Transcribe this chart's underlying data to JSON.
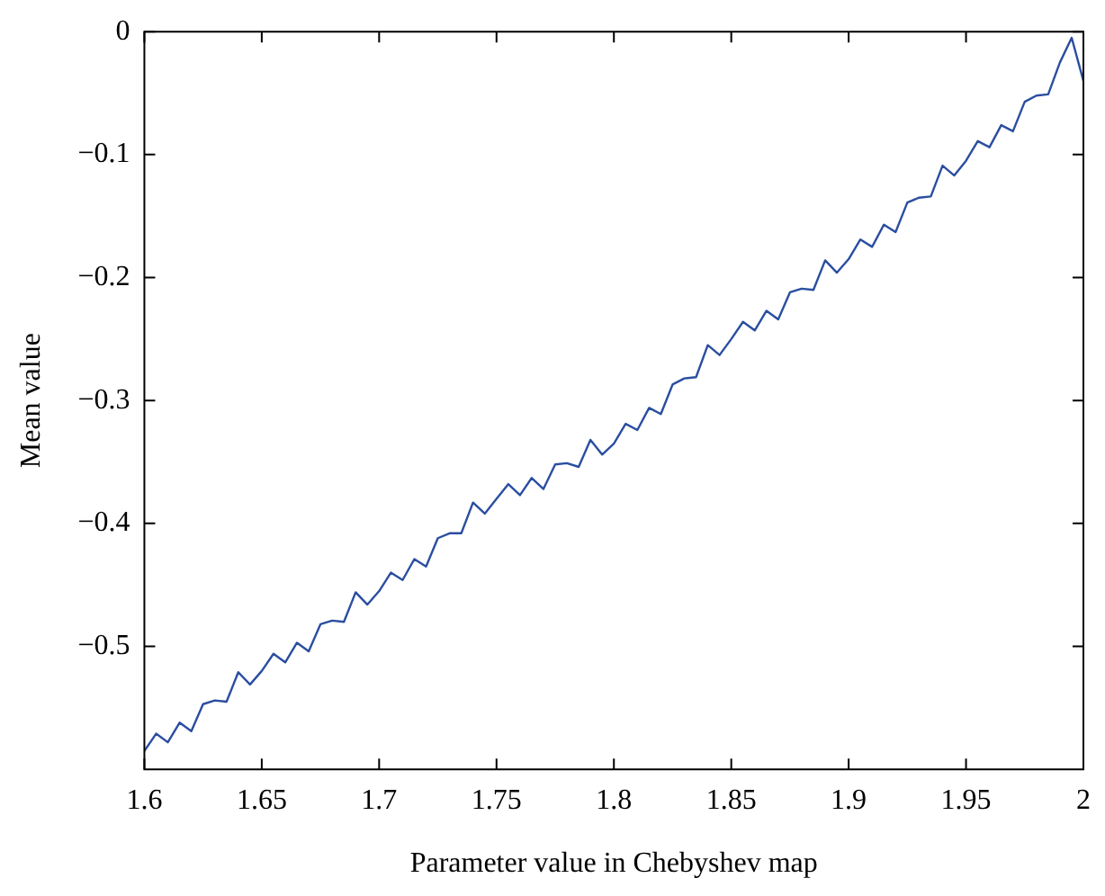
{
  "chart_data": {
    "type": "line",
    "xlabel": "Parameter value in Chebyshev map",
    "ylabel": "Mean value",
    "x": [
      1.6,
      1.605,
      1.61,
      1.615,
      1.62,
      1.625,
      1.63,
      1.635,
      1.64,
      1.645,
      1.65,
      1.655,
      1.66,
      1.665,
      1.67,
      1.675,
      1.68,
      1.685,
      1.69,
      1.695,
      1.7,
      1.705,
      1.71,
      1.715,
      1.72,
      1.725,
      1.73,
      1.735,
      1.74,
      1.745,
      1.75,
      1.755,
      1.76,
      1.765,
      1.77,
      1.775,
      1.78,
      1.785,
      1.79,
      1.795,
      1.8,
      1.805,
      1.81,
      1.815,
      1.82,
      1.825,
      1.83,
      1.835,
      1.84,
      1.845,
      1.85,
      1.855,
      1.86,
      1.865,
      1.87,
      1.875,
      1.88,
      1.885,
      1.89,
      1.895,
      1.9,
      1.905,
      1.91,
      1.915,
      1.92,
      1.925,
      1.93,
      1.935,
      1.94,
      1.945,
      1.95,
      1.955,
      1.96,
      1.965,
      1.97,
      1.975,
      1.98,
      1.985,
      1.99,
      1.995,
      2.0
    ],
    "series": [
      {
        "color": "#2a4ea0",
        "values": [
          -0.585,
          -0.571,
          -0.578,
          -0.562,
          -0.569,
          -0.547,
          -0.544,
          -0.545,
          -0.521,
          -0.531,
          -0.52,
          -0.506,
          -0.513,
          -0.497,
          -0.504,
          -0.482,
          -0.479,
          -0.48,
          -0.456,
          -0.466,
          -0.455,
          -0.44,
          -0.446,
          -0.429,
          -0.435,
          -0.412,
          -0.408,
          -0.408,
          -0.383,
          -0.392,
          -0.38,
          -0.368,
          -0.377,
          -0.363,
          -0.372,
          -0.352,
          -0.351,
          -0.354,
          -0.332,
          -0.344,
          -0.335,
          -0.319,
          -0.324,
          -0.306,
          -0.311,
          -0.287,
          -0.282,
          -0.281,
          -0.255,
          -0.263,
          -0.25,
          -0.236,
          -0.243,
          -0.227,
          -0.234,
          -0.212,
          -0.209,
          -0.21,
          -0.186,
          -0.196,
          -0.185,
          -0.169,
          -0.175,
          -0.157,
          -0.163,
          -0.139,
          -0.135,
          -0.134,
          -0.109,
          -0.117,
          -0.105,
          -0.089,
          -0.094,
          -0.076,
          -0.081,
          -0.057,
          -0.052,
          -0.051,
          -0.025,
          -0.005,
          -0.04
        ]
      }
    ],
    "xlim": [
      1.6,
      2
    ],
    "xticks": [
      1.6,
      1.65,
      1.7,
      1.75,
      1.8,
      1.85,
      1.9,
      1.95,
      2
    ],
    "ylim": [
      -0.6,
      0
    ],
    "yticks": [
      -0.5,
      -0.4,
      -0.3,
      -0.2,
      -0.1,
      0
    ],
    "legend": false,
    "marker": "none",
    "line_style": "solid"
  }
}
